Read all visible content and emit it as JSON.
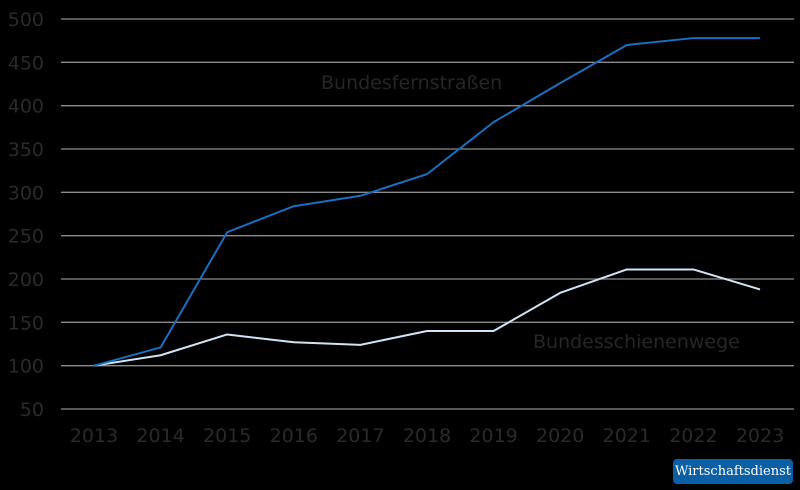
{
  "chart_data": {
    "type": "line",
    "title": "",
    "xlabel": "",
    "ylabel": "",
    "x": [
      2013,
      2014,
      2015,
      2016,
      2017,
      2018,
      2019,
      2020,
      2021,
      2022,
      2023
    ],
    "categories": [
      "2013",
      "2014",
      "2015",
      "2016",
      "2017",
      "2018",
      "2019",
      "2020",
      "2021",
      "2022",
      "2023"
    ],
    "series": [
      {
        "name": "Bundesfernstraßen",
        "color": "#1a6fc0",
        "values": [
          100,
          121,
          254,
          284,
          296,
          321,
          381,
          426,
          470,
          478,
          478
        ]
      },
      {
        "name": "Bundesschienenwege",
        "color": "#cfe4f7",
        "values": [
          100,
          112,
          136,
          127,
          124,
          140,
          140,
          184,
          211,
          211,
          188
        ]
      }
    ],
    "yticks": [
      50,
      100,
      150,
      200,
      250,
      300,
      350,
      400,
      450,
      500
    ],
    "ylim": [
      50,
      500
    ],
    "grid": true,
    "legend": "inline labels",
    "annotations": [
      "Bundesfernstraßen",
      "Bundesschienenwege"
    ]
  },
  "labels": {
    "series1": "Bundesfernstraßen",
    "series2": "Bundesschienenwege"
  },
  "branding": {
    "badge": "Wirtschaftsdienst",
    "color": "#0b5fa5"
  }
}
